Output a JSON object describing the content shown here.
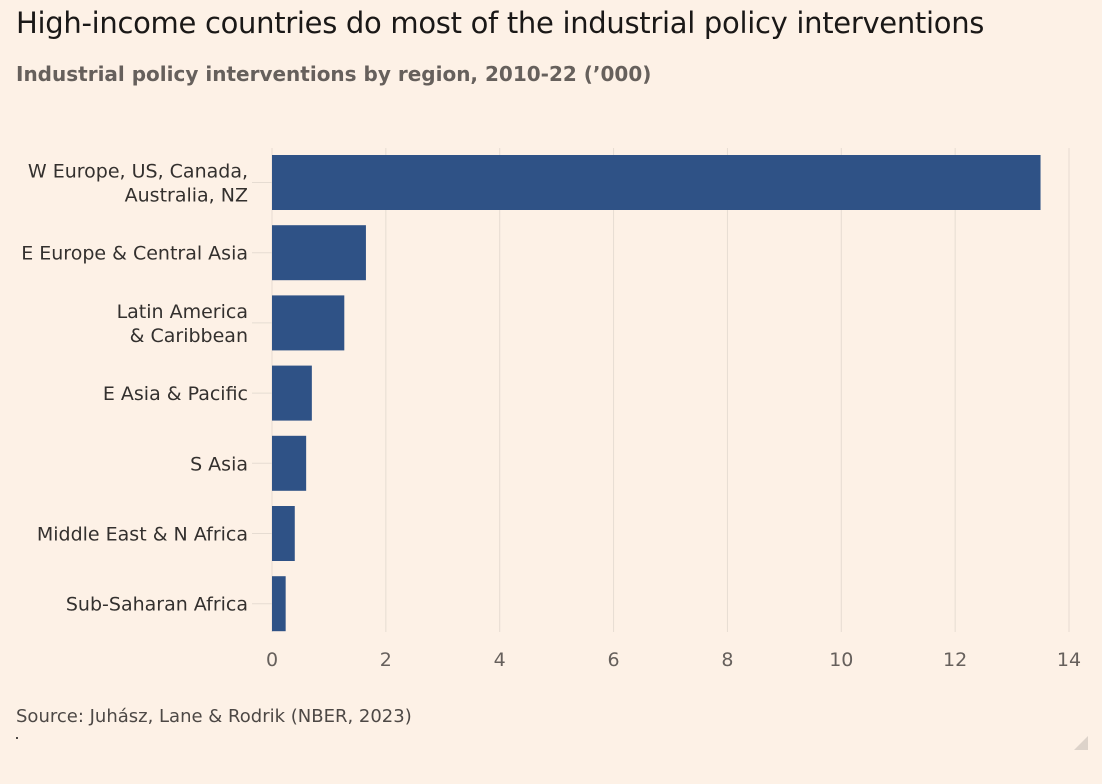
{
  "title": "High-income countries do most of the industrial policy interventions",
  "subtitle": "Industrial policy interventions by region, 2010-22 (’000)",
  "source": "Source: Juhász, Lane & Rodrik (NBER, 2023)",
  "colors": {
    "bar": "#2f5286",
    "background": "#fdf1e6",
    "grid": "#e6dcd2",
    "text": "#33302e",
    "tick": "#66605c"
  },
  "chart_data": {
    "type": "bar",
    "orientation": "horizontal",
    "categories": [
      [
        "W Europe, US, Canada,",
        "Australia, NZ"
      ],
      [
        "E Europe & Central Asia"
      ],
      [
        "Latin America",
        "& Caribbean"
      ],
      [
        "E Asia & Pacific"
      ],
      [
        "S Asia"
      ],
      [
        "Middle East & N Africa"
      ],
      [
        "Sub-Saharan Africa"
      ]
    ],
    "values": [
      13.5,
      1.65,
      1.27,
      0.7,
      0.6,
      0.4,
      0.24
    ],
    "xlim": [
      0,
      14
    ],
    "xticks": [
      "0",
      "2",
      "4",
      "6",
      "8",
      "10",
      "12",
      "14"
    ],
    "grid": "vertical"
  }
}
